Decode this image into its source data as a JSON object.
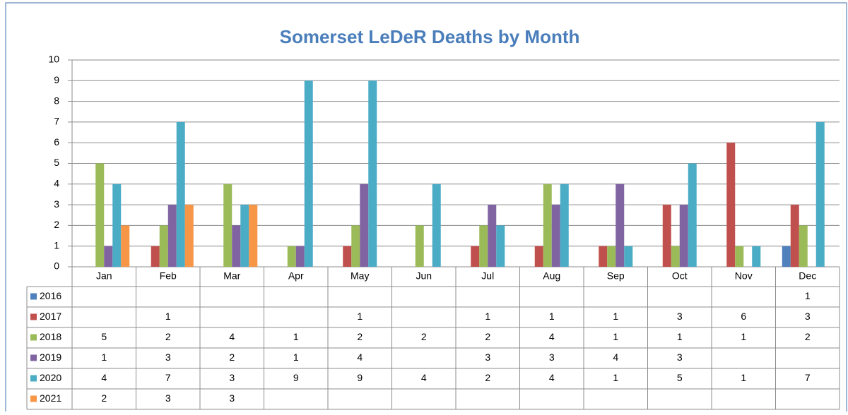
{
  "chart_data": {
    "type": "bar",
    "title": "Somerset LeDeR Deaths by Month",
    "categories": [
      "Jan",
      "Feb",
      "Mar",
      "Apr",
      "May",
      "Jun",
      "Jul",
      "Aug",
      "Sep",
      "Oct",
      "Nov",
      "Dec"
    ],
    "series": [
      {
        "name": "2016",
        "color": "#4f81bd",
        "values": [
          null,
          null,
          null,
          null,
          null,
          null,
          null,
          null,
          null,
          null,
          null,
          1
        ]
      },
      {
        "name": "2017",
        "color": "#c0504d",
        "values": [
          null,
          1,
          null,
          null,
          1,
          null,
          1,
          1,
          1,
          3,
          6,
          3
        ]
      },
      {
        "name": "2018",
        "color": "#9bbb59",
        "values": [
          5,
          2,
          4,
          1,
          2,
          2,
          2,
          4,
          1,
          1,
          1,
          2
        ]
      },
      {
        "name": "2019",
        "color": "#8064a2",
        "values": [
          1,
          3,
          2,
          1,
          4,
          null,
          3,
          3,
          4,
          3,
          null,
          null
        ]
      },
      {
        "name": "2020",
        "color": "#4bacc6",
        "values": [
          4,
          7,
          3,
          9,
          9,
          4,
          2,
          4,
          1,
          5,
          1,
          7
        ]
      },
      {
        "name": "2021",
        "color": "#f79646",
        "values": [
          2,
          3,
          3,
          null,
          null,
          null,
          null,
          null,
          null,
          null,
          null,
          null
        ]
      }
    ],
    "ylim": [
      0,
      10
    ],
    "yticks": [
      0,
      1,
      2,
      3,
      4,
      5,
      6,
      7,
      8,
      9,
      10
    ],
    "grid": true,
    "data_table": true
  }
}
